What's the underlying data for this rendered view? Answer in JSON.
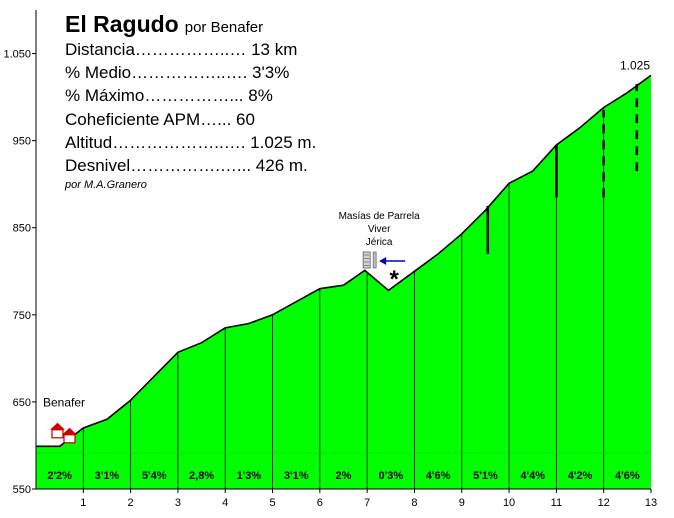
{
  "header": {
    "title": "El Ragudo",
    "subtitle": "por Benafer",
    "stats": [
      "Distancia……………..… 13 km",
      "% Medio……………..…. 3'3%",
      "% Máximo……………...  8%",
      "Coheficiente APM…... 60",
      "Altitud………………..…. 1.025 m.",
      "Desnivel…………….…... 426 m."
    ],
    "author": "por M.A.Granero"
  },
  "chart_data": {
    "type": "area",
    "title": "El Ragudo",
    "xlabel": "",
    "ylabel": "",
    "xlim": [
      0,
      13
    ],
    "ylim": [
      550,
      1100
    ],
    "x_ticks": [
      1,
      2,
      3,
      4,
      5,
      6,
      7,
      8,
      9,
      10,
      11,
      12,
      13
    ],
    "y_ticks": [
      {
        "value": 550,
        "label": "550"
      },
      {
        "value": 650,
        "label": "650"
      },
      {
        "value": 750,
        "label": "750"
      },
      {
        "value": 850,
        "label": "850"
      },
      {
        "value": 950,
        "label": "950"
      },
      {
        "value": 1050,
        "label": "1.050"
      }
    ],
    "grid": false,
    "fill_color": "#00ff00",
    "profile": [
      {
        "x": 0,
        "y": 599
      },
      {
        "x": 0.5,
        "y": 599
      },
      {
        "x": 1.0,
        "y": 620
      },
      {
        "x": 1.5,
        "y": 630
      },
      {
        "x": 2.0,
        "y": 652
      },
      {
        "x": 3.0,
        "y": 707
      },
      {
        "x": 3.5,
        "y": 718
      },
      {
        "x": 4.0,
        "y": 735
      },
      {
        "x": 4.5,
        "y": 740
      },
      {
        "x": 5.0,
        "y": 750
      },
      {
        "x": 6.0,
        "y": 780
      },
      {
        "x": 6.5,
        "y": 784
      },
      {
        "x": 6.95,
        "y": 801
      },
      {
        "x": 7.45,
        "y": 778
      },
      {
        "x": 8.0,
        "y": 800
      },
      {
        "x": 8.5,
        "y": 820
      },
      {
        "x": 9.0,
        "y": 843
      },
      {
        "x": 9.5,
        "y": 870
      },
      {
        "x": 10.0,
        "y": 901
      },
      {
        "x": 10.5,
        "y": 915
      },
      {
        "x": 11.0,
        "y": 945
      },
      {
        "x": 11.5,
        "y": 965
      },
      {
        "x": 12.0,
        "y": 988
      },
      {
        "x": 12.5,
        "y": 1005
      },
      {
        "x": 13.0,
        "y": 1025
      }
    ],
    "segments": [
      {
        "x_center": 0.5,
        "label": "2'2%"
      },
      {
        "x_center": 1.5,
        "label": "3'1%"
      },
      {
        "x_center": 2.5,
        "label": "5'4%"
      },
      {
        "x_center": 3.5,
        "label": "2,8%"
      },
      {
        "x_center": 4.5,
        "label": "1'3%"
      },
      {
        "x_center": 5.5,
        "label": "3'1%"
      },
      {
        "x_center": 6.5,
        "label": "2%"
      },
      {
        "x_center": 7.5,
        "label": "0'3%"
      },
      {
        "x_center": 8.5,
        "label": "4'6%"
      },
      {
        "x_center": 9.5,
        "label": "5'1%"
      },
      {
        "x_center": 10.5,
        "label": "4'4%"
      },
      {
        "x_center": 11.5,
        "label": "4'2%"
      },
      {
        "x_center": 12.5,
        "label": "4'6%"
      }
    ],
    "annotations": {
      "start_label": "Benafer",
      "end_label": "1.025",
      "junction_lines": [
        "Masías de Parrela",
        "Viver",
        "Jérica"
      ],
      "junction_x": 7.0,
      "asterisk": "*",
      "junction_marks": [
        {
          "x": 9.55,
          "from": 820,
          "to": 875,
          "style": "solid"
        },
        {
          "x": 11.0,
          "from": 885,
          "to": 945,
          "style": "solid"
        },
        {
          "x": 12.0,
          "from": 885,
          "to": 985,
          "style": "dashed"
        },
        {
          "x": 12.7,
          "from": 915,
          "to": 1015,
          "style": "dashed"
        }
      ]
    }
  }
}
